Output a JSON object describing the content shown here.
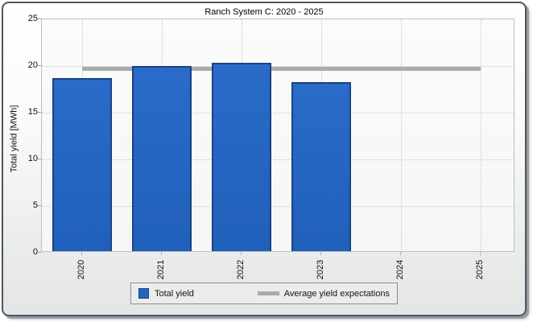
{
  "chart_data": {
    "type": "bar",
    "title": "Ranch System C: 2020 - 2025",
    "categories": [
      "2020",
      "2021",
      "2022",
      "2023",
      "2024",
      "2025"
    ],
    "series": [
      {
        "name": "Total yield",
        "type": "bar",
        "color": "#2565BF",
        "border_color": "#1B4182",
        "values": [
          18.5,
          19.8,
          20.2,
          18.1,
          null,
          null
        ]
      },
      {
        "name": "Average yield expectations",
        "type": "line",
        "color": "#ABABAB",
        "value": 19.9,
        "span": [
          "2020",
          "2025"
        ]
      }
    ],
    "xlabel": "",
    "ylabel": "Total yield [MWh]",
    "ylim": [
      0,
      25
    ],
    "yticks": [
      0,
      5,
      10,
      15,
      20,
      25
    ],
    "grid": true,
    "legend_position": "bottom"
  },
  "legend": {
    "items": [
      {
        "label": "Total yield",
        "swatch": "square",
        "color": "#2565BF"
      },
      {
        "label": "Average yield expectations",
        "swatch": "line",
        "color": "#ABABAB"
      }
    ]
  }
}
